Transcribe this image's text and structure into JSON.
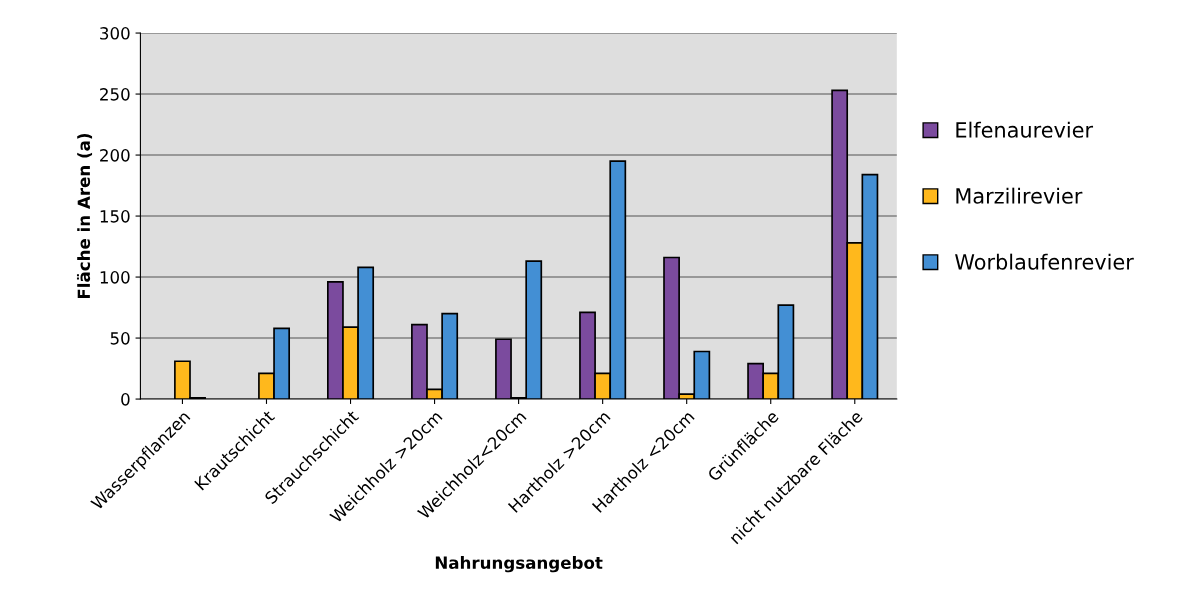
{
  "chart_data": {
    "type": "bar",
    "xlabel": "Nahrungsangebot",
    "ylabel": "Fläche in Aren (a)",
    "categories": [
      "Wasserpflanzen",
      "Krautschicht",
      "Strauchschicht",
      "Weichholz >20cm",
      "Weichholz<20cm",
      "Hartholz >20cm",
      "Hartholz <20cm",
      "Grünfläche",
      "nicht nutzbare Fläche"
    ],
    "series": [
      {
        "name": "Elfenaurevier",
        "color": "#7b4b9e",
        "values": [
          0,
          0,
          96,
          61,
          49,
          71,
          116,
          29,
          253
        ]
      },
      {
        "name": "Marzilirevier",
        "color": "#ffb81c",
        "values": [
          31,
          21,
          59,
          8,
          1,
          21,
          4,
          21,
          128
        ]
      },
      {
        "name": "Worblaufenrevier",
        "color": "#438fd4",
        "values": [
          1,
          58,
          108,
          70,
          113,
          195,
          39,
          77,
          184
        ]
      }
    ],
    "ylim": [
      0,
      300
    ],
    "yticks": [
      0,
      50,
      100,
      150,
      200,
      250,
      300
    ],
    "grid": "y",
    "legend": "right"
  }
}
